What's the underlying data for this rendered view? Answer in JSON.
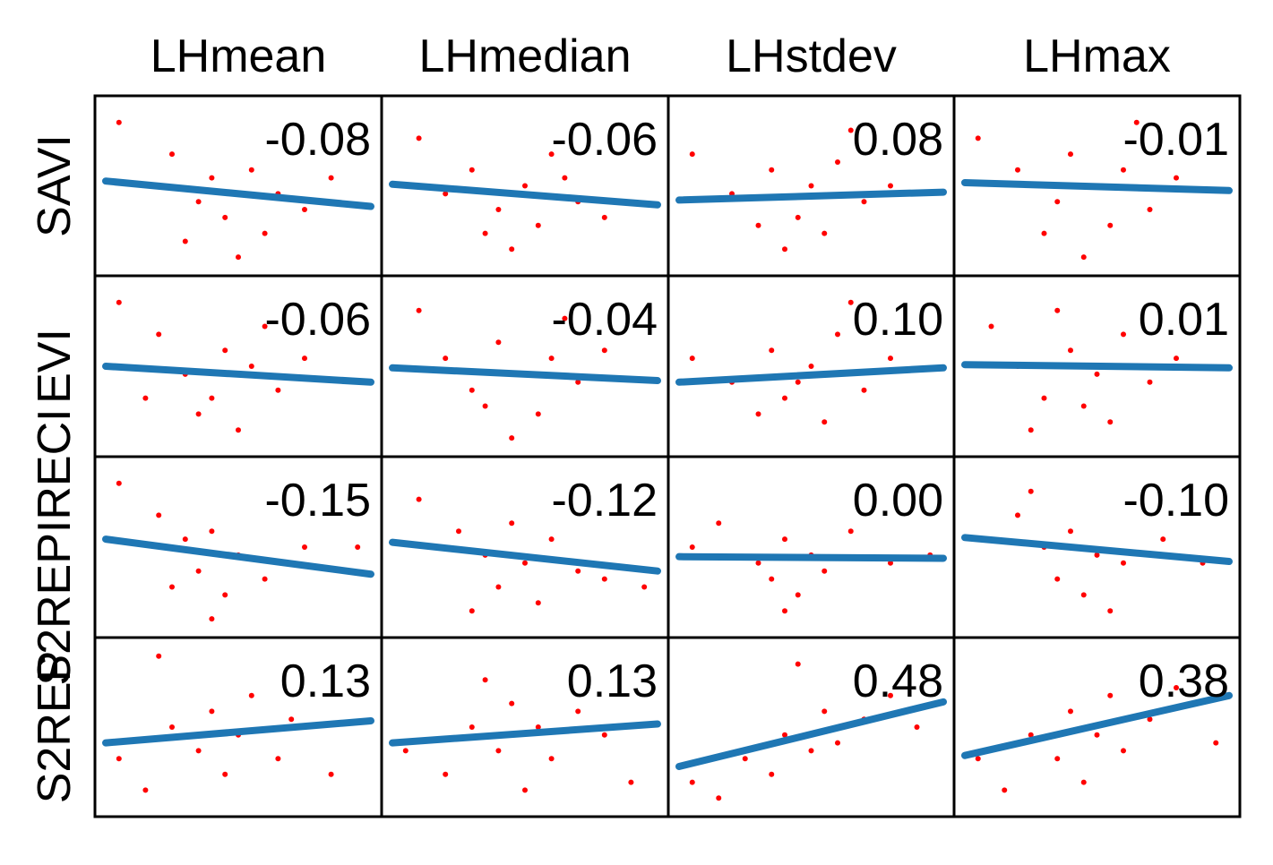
{
  "chart_data": {
    "type": "scatter_matrix",
    "columns": [
      "LHmean",
      "LHmedian",
      "LHstdev",
      "LHmax"
    ],
    "xlim": [
      0,
      1
    ],
    "ylim": [
      0,
      1
    ],
    "point_color": "#ff0000",
    "line_color": "#1f77b4",
    "rows": [
      {
        "name": "SAVI",
        "values": [
          -0.08,
          -0.06,
          0.08,
          -0.01
        ],
        "value_labels": [
          "-0.08",
          "-0.06",
          "0.08",
          "-0.01"
        ],
        "fit": [
          [
            0.53,
            0.37
          ],
          [
            0.51,
            0.38
          ],
          [
            0.41,
            0.46
          ],
          [
            0.52,
            0.47
          ]
        ],
        "points": [
          [
            [
              0.05,
              0.9
            ],
            [
              0.25,
              0.7
            ],
            [
              0.4,
              0.55
            ],
            [
              0.45,
              0.3
            ],
            [
              0.55,
              0.6
            ],
            [
              0.6,
              0.2
            ],
            [
              0.65,
              0.45
            ],
            [
              0.35,
              0.4
            ],
            [
              0.75,
              0.35
            ],
            [
              0.5,
              0.05
            ],
            [
              0.3,
              0.15
            ],
            [
              0.85,
              0.55
            ]
          ],
          [
            [
              0.1,
              0.8
            ],
            [
              0.3,
              0.6
            ],
            [
              0.4,
              0.35
            ],
            [
              0.5,
              0.5
            ],
            [
              0.55,
              0.25
            ],
            [
              0.6,
              0.7
            ],
            [
              0.45,
              0.1
            ],
            [
              0.7,
              0.4
            ],
            [
              0.35,
              0.2
            ],
            [
              0.8,
              0.3
            ],
            [
              0.65,
              0.55
            ],
            [
              0.2,
              0.45
            ]
          ],
          [
            [
              0.05,
              0.7
            ],
            [
              0.2,
              0.45
            ],
            [
              0.35,
              0.6
            ],
            [
              0.45,
              0.3
            ],
            [
              0.5,
              0.5
            ],
            [
              0.55,
              0.2
            ],
            [
              0.6,
              0.65
            ],
            [
              0.7,
              0.4
            ],
            [
              0.4,
              0.1
            ],
            [
              0.65,
              0.85
            ],
            [
              0.8,
              0.5
            ],
            [
              0.3,
              0.25
            ]
          ],
          [
            [
              0.05,
              0.8
            ],
            [
              0.2,
              0.6
            ],
            [
              0.35,
              0.4
            ],
            [
              0.4,
              0.7
            ],
            [
              0.5,
              0.5
            ],
            [
              0.55,
              0.25
            ],
            [
              0.6,
              0.6
            ],
            [
              0.45,
              0.05
            ],
            [
              0.7,
              0.35
            ],
            [
              0.8,
              0.55
            ],
            [
              0.3,
              0.2
            ],
            [
              0.65,
              0.9
            ]
          ]
        ]
      },
      {
        "name": "EVI",
        "values": [
          -0.06,
          -0.04,
          0.1,
          0.01
        ],
        "value_labels": [
          "-0.06",
          "-0.04",
          "0.10",
          "0.01"
        ],
        "fit": [
          [
            0.5,
            0.4
          ],
          [
            0.49,
            0.41
          ],
          [
            0.4,
            0.49
          ],
          [
            0.51,
            0.49
          ]
        ],
        "points": [
          [
            [
              0.05,
              0.9
            ],
            [
              0.2,
              0.7
            ],
            [
              0.3,
              0.45
            ],
            [
              0.4,
              0.3
            ],
            [
              0.45,
              0.6
            ],
            [
              0.55,
              0.5
            ],
            [
              0.5,
              0.1
            ],
            [
              0.65,
              0.35
            ],
            [
              0.35,
              0.2
            ],
            [
              0.75,
              0.55
            ],
            [
              0.6,
              0.75
            ],
            [
              0.15,
              0.3
            ]
          ],
          [
            [
              0.1,
              0.85
            ],
            [
              0.2,
              0.55
            ],
            [
              0.3,
              0.35
            ],
            [
              0.4,
              0.65
            ],
            [
              0.5,
              0.45
            ],
            [
              0.55,
              0.2
            ],
            [
              0.6,
              0.55
            ],
            [
              0.45,
              0.05
            ],
            [
              0.7,
              0.4
            ],
            [
              0.8,
              0.6
            ],
            [
              0.35,
              0.25
            ],
            [
              0.65,
              0.8
            ]
          ],
          [
            [
              0.05,
              0.55
            ],
            [
              0.2,
              0.4
            ],
            [
              0.35,
              0.6
            ],
            [
              0.4,
              0.3
            ],
            [
              0.5,
              0.5
            ],
            [
              0.55,
              0.15
            ],
            [
              0.6,
              0.7
            ],
            [
              0.45,
              0.4
            ],
            [
              0.7,
              0.35
            ],
            [
              0.65,
              0.9
            ],
            [
              0.8,
              0.55
            ],
            [
              0.3,
              0.2
            ]
          ],
          [
            [
              0.1,
              0.75
            ],
            [
              0.2,
              0.5
            ],
            [
              0.3,
              0.3
            ],
            [
              0.4,
              0.6
            ],
            [
              0.5,
              0.45
            ],
            [
              0.55,
              0.15
            ],
            [
              0.6,
              0.7
            ],
            [
              0.45,
              0.25
            ],
            [
              0.7,
              0.4
            ],
            [
              0.8,
              0.55
            ],
            [
              0.35,
              0.85
            ],
            [
              0.25,
              0.1
            ]
          ]
        ]
      },
      {
        "name": "S2REPIRECI",
        "values": [
          -0.15,
          -0.12,
          0.0,
          -0.1
        ],
        "value_labels": [
          "-0.15",
          "-0.12",
          "0.00",
          "-0.10"
        ],
        "fit": [
          [
            0.55,
            0.33
          ],
          [
            0.53,
            0.35
          ],
          [
            0.44,
            0.43
          ],
          [
            0.56,
            0.41
          ]
        ],
        "points": [
          [
            [
              0.05,
              0.9
            ],
            [
              0.2,
              0.7
            ],
            [
              0.3,
              0.55
            ],
            [
              0.35,
              0.35
            ],
            [
              0.4,
              0.6
            ],
            [
              0.45,
              0.2
            ],
            [
              0.5,
              0.45
            ],
            [
              0.4,
              0.05
            ],
            [
              0.6,
              0.3
            ],
            [
              0.75,
              0.5
            ],
            [
              0.25,
              0.25
            ],
            [
              0.95,
              0.5
            ]
          ],
          [
            [
              0.1,
              0.8
            ],
            [
              0.25,
              0.6
            ],
            [
              0.35,
              0.45
            ],
            [
              0.4,
              0.25
            ],
            [
              0.45,
              0.65
            ],
            [
              0.5,
              0.4
            ],
            [
              0.55,
              0.15
            ],
            [
              0.6,
              0.55
            ],
            [
              0.7,
              0.35
            ],
            [
              0.3,
              0.1
            ],
            [
              0.8,
              0.3
            ],
            [
              0.95,
              0.25
            ]
          ],
          [
            [
              0.05,
              0.5
            ],
            [
              0.15,
              0.65
            ],
            [
              0.3,
              0.4
            ],
            [
              0.35,
              0.3
            ],
            [
              0.4,
              0.55
            ],
            [
              0.45,
              0.2
            ],
            [
              0.5,
              0.45
            ],
            [
              0.55,
              0.35
            ],
            [
              0.4,
              0.1
            ],
            [
              0.65,
              0.6
            ],
            [
              0.8,
              0.4
            ],
            [
              0.95,
              0.45
            ]
          ],
          [
            [
              0.05,
              0.55
            ],
            [
              0.2,
              0.7
            ],
            [
              0.3,
              0.5
            ],
            [
              0.35,
              0.3
            ],
            [
              0.4,
              0.6
            ],
            [
              0.45,
              0.2
            ],
            [
              0.5,
              0.45
            ],
            [
              0.55,
              0.1
            ],
            [
              0.6,
              0.4
            ],
            [
              0.75,
              0.55
            ],
            [
              0.25,
              0.85
            ],
            [
              0.9,
              0.4
            ]
          ]
        ]
      },
      {
        "name": "S2REP",
        "values": [
          0.13,
          0.13,
          0.48,
          0.38
        ],
        "value_labels": [
          "0.13",
          "0.13",
          "0.48",
          "0.38"
        ],
        "fit": [
          [
            0.4,
            0.54
          ],
          [
            0.4,
            0.52
          ],
          [
            0.25,
            0.66
          ],
          [
            0.32,
            0.7
          ]
        ],
        "points": [
          [
            [
              0.05,
              0.3
            ],
            [
              0.15,
              0.1
            ],
            [
              0.25,
              0.5
            ],
            [
              0.35,
              0.35
            ],
            [
              0.4,
              0.6
            ],
            [
              0.45,
              0.2
            ],
            [
              0.5,
              0.45
            ],
            [
              0.55,
              0.7
            ],
            [
              0.65,
              0.3
            ],
            [
              0.7,
              0.55
            ],
            [
              0.85,
              0.2
            ],
            [
              0.2,
              0.95
            ]
          ],
          [
            [
              0.05,
              0.35
            ],
            [
              0.2,
              0.2
            ],
            [
              0.3,
              0.5
            ],
            [
              0.4,
              0.35
            ],
            [
              0.45,
              0.65
            ],
            [
              0.5,
              0.1
            ],
            [
              0.55,
              0.5
            ],
            [
              0.6,
              0.3
            ],
            [
              0.7,
              0.6
            ],
            [
              0.8,
              0.45
            ],
            [
              0.35,
              0.8
            ],
            [
              0.9,
              0.15
            ]
          ],
          [
            [
              0.05,
              0.15
            ],
            [
              0.15,
              0.05
            ],
            [
              0.25,
              0.3
            ],
            [
              0.35,
              0.2
            ],
            [
              0.4,
              0.45
            ],
            [
              0.5,
              0.35
            ],
            [
              0.55,
              0.6
            ],
            [
              0.6,
              0.4
            ],
            [
              0.7,
              0.55
            ],
            [
              0.8,
              0.7
            ],
            [
              0.45,
              0.9
            ],
            [
              0.9,
              0.5
            ]
          ],
          [
            [
              0.05,
              0.3
            ],
            [
              0.15,
              0.1
            ],
            [
              0.25,
              0.45
            ],
            [
              0.35,
              0.3
            ],
            [
              0.4,
              0.6
            ],
            [
              0.5,
              0.45
            ],
            [
              0.55,
              0.7
            ],
            [
              0.6,
              0.35
            ],
            [
              0.7,
              0.55
            ],
            [
              0.8,
              0.75
            ],
            [
              0.45,
              0.15
            ],
            [
              0.95,
              0.4
            ]
          ]
        ]
      }
    ]
  }
}
